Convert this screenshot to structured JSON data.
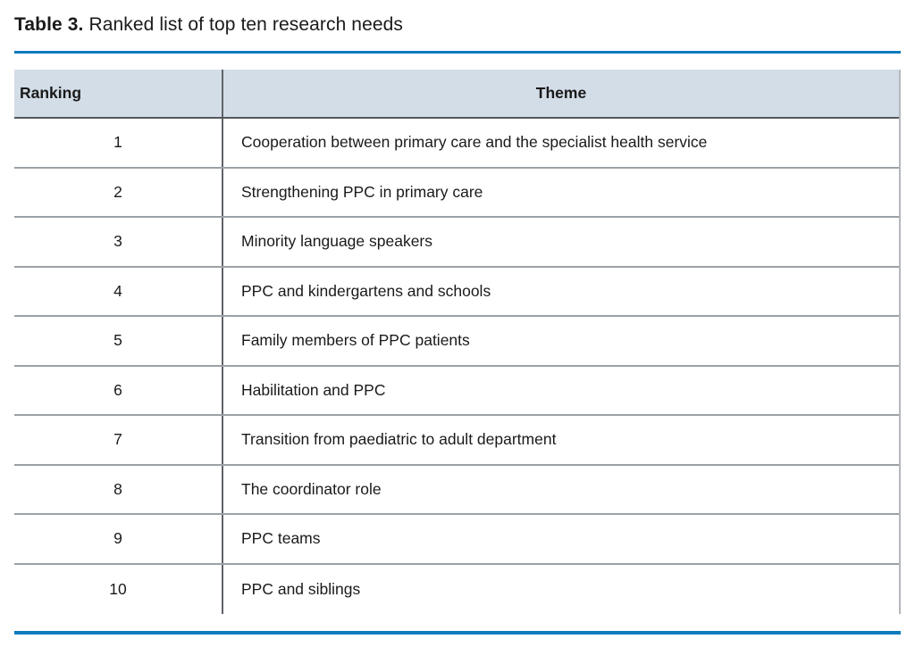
{
  "caption": {
    "label": "Table 3.",
    "text": "Ranked list of top ten research needs"
  },
  "colors": {
    "accent_rule": "#0f7bbd",
    "header_background": "#d3dde7",
    "header_border": "#54585c",
    "row_border": "#9ba1a6",
    "column_divider": "#5f6368",
    "text": "#1a1a1a"
  },
  "table": {
    "columns": [
      "Ranking",
      "Theme"
    ],
    "rows": [
      {
        "rank": "1",
        "theme": "Cooperation between primary care and the specialist health service"
      },
      {
        "rank": "2",
        "theme": "Strengthening PPC in primary care"
      },
      {
        "rank": "3",
        "theme": "Minority language speakers"
      },
      {
        "rank": "4",
        "theme": "PPC and kindergartens and schools"
      },
      {
        "rank": "5",
        "theme": "Family members of PPC patients"
      },
      {
        "rank": "6",
        "theme": "Habilitation and PPC"
      },
      {
        "rank": "7",
        "theme": "Transition from paediatric to adult department"
      },
      {
        "rank": "8",
        "theme": "The coordinator role"
      },
      {
        "rank": "9",
        "theme": "PPC teams"
      },
      {
        "rank": "10",
        "theme": "PPC and siblings"
      }
    ]
  }
}
